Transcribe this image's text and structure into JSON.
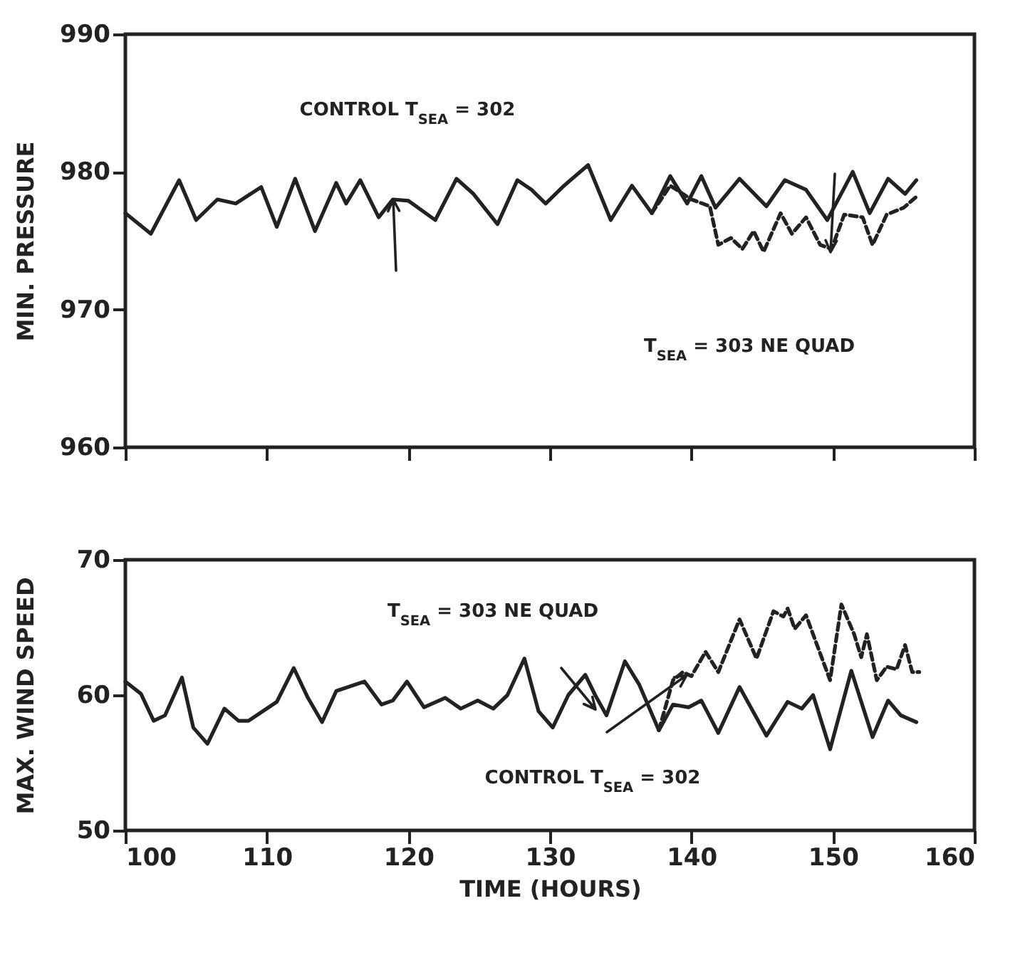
{
  "chart_data": [
    {
      "type": "line",
      "ylabel": "MIN. PRESSURE",
      "xlim": [
        100,
        160
      ],
      "xticks": [
        100,
        110,
        120,
        130,
        140,
        150,
        160
      ],
      "ylim": [
        960,
        990
      ],
      "yticks": [
        960,
        970,
        980,
        990
      ],
      "tick_labels": "y",
      "grid": false,
      "series": [
        {
          "color": "#222222",
          "line_style": "solid",
          "x": [
            100,
            101.8,
            103.8,
            105,
            106.5,
            107.8,
            109.6,
            110.7,
            112,
            113.4,
            114.9,
            115.6,
            116.6,
            117.9,
            118.9,
            120,
            121.9,
            123.4,
            124.6,
            126.3,
            127.7,
            128.7,
            129.7,
            131,
            132.7,
            134.3,
            135.8,
            137.2,
            138.5,
            139.7,
            140.7,
            141.7,
            143.4,
            145.3,
            146.6,
            148.1,
            149.6,
            151.4,
            152.6,
            153.9,
            155.1,
            155.9
          ],
          "values": [
            977,
            975.5,
            979.4,
            976.5,
            978,
            977.7,
            978.9,
            976,
            979.5,
            975.7,
            979.2,
            977.7,
            979.4,
            976.7,
            978,
            977.9,
            976.5,
            979.5,
            978.4,
            976.2,
            979.4,
            978.7,
            977.7,
            979,
            980.5,
            976.5,
            979,
            977,
            979.7,
            977.7,
            979.7,
            977.4,
            979.5,
            977.5,
            979.4,
            978.7,
            976.5,
            980,
            977,
            979.5,
            978.4,
            979.4
          ]
        },
        {
          "color": "#222222",
          "line_style": "dashed",
          "x": [
            137.2,
            138.5,
            140,
            141.3,
            141.9,
            142.8,
            143.6,
            144.4,
            145.1,
            146.3,
            147.1,
            148.1,
            149.1,
            149.9,
            150.8,
            152.1,
            152.8,
            153.8,
            155,
            155.9
          ],
          "values": [
            977,
            979,
            978,
            977.5,
            974.7,
            975.2,
            974.4,
            975.7,
            974.2,
            977,
            975.5,
            976.7,
            974.7,
            974.4,
            976.9,
            976.7,
            974.7,
            976.9,
            977.4,
            978.2
          ]
        }
      ],
      "annotations": [
        "CONTROL T$_{SEA}$ = 302",
        "T$_{SEA}$ = 303 NE QUAD"
      ]
    },
    {
      "type": "line",
      "xlabel": "TIME (HOURS)",
      "ylabel": "MAX. WIND SPEED",
      "xlim": [
        100,
        160
      ],
      "xticks": [
        100,
        110,
        120,
        130,
        140,
        150,
        160
      ],
      "ylim": [
        50,
        70
      ],
      "yticks": [
        50,
        60,
        70
      ],
      "grid": false,
      "series": [
        {
          "color": "#222222",
          "line_style": "solid",
          "x": [
            100,
            101.1,
            102,
            102.8,
            104,
            104.8,
            105.8,
            107,
            108,
            108.7,
            110.7,
            111.9,
            112.9,
            113.9,
            114.9,
            116.9,
            118.1,
            118.9,
            119.9,
            121.1,
            122.6,
            123.7,
            124.9,
            126,
            127,
            128.2,
            129.2,
            130.2,
            131.3,
            132.5,
            133.2,
            134,
            135.3,
            136.3,
            137.7,
            138.7,
            139.8,
            140.7,
            141.9,
            143.4,
            145.3,
            146.8,
            147.8,
            148.6,
            149.8,
            151.3,
            152.8,
            153.9,
            154.8,
            155.9
          ],
          "values": [
            61,
            60.1,
            58.1,
            58.5,
            61.3,
            57.6,
            56.4,
            59,
            58.1,
            58.1,
            59.5,
            62,
            59.8,
            58,
            60.3,
            61,
            59.3,
            59.6,
            61,
            59.1,
            59.8,
            59,
            59.6,
            59,
            60,
            62.7,
            58.8,
            57.6,
            60,
            61.5,
            60,
            58.5,
            62.5,
            60.8,
            57.4,
            59.3,
            59.1,
            59.6,
            57.2,
            60.6,
            57,
            59.5,
            59,
            60,
            56,
            61.8,
            56.9,
            59.6,
            58.5,
            58
          ]
        },
        {
          "color": "#222222",
          "line_style": "dashed",
          "x": [
            137.7,
            138.7,
            139.4,
            140,
            141,
            141.9,
            143.4,
            144.6,
            145.8,
            146.5,
            146.8,
            147.3,
            148.1,
            149.8,
            150.6,
            151.5,
            152,
            152.4,
            153.1,
            153.8,
            154.5,
            155.1,
            155.6,
            156.1
          ],
          "values": [
            57.4,
            61.1,
            61.7,
            61.4,
            63.2,
            61.7,
            65.6,
            62.7,
            66.2,
            65.8,
            66.4,
            64.9,
            65.9,
            61.1,
            66.7,
            64.5,
            62.8,
            64.5,
            61.1,
            62.1,
            61.9,
            63.7,
            61.7,
            61.7
          ]
        }
      ],
      "annotations": [
        "T$_{SEA}$ = 303 NE QUAD",
        "CONTROL T$_{SEA}$ = 302"
      ]
    }
  ]
}
